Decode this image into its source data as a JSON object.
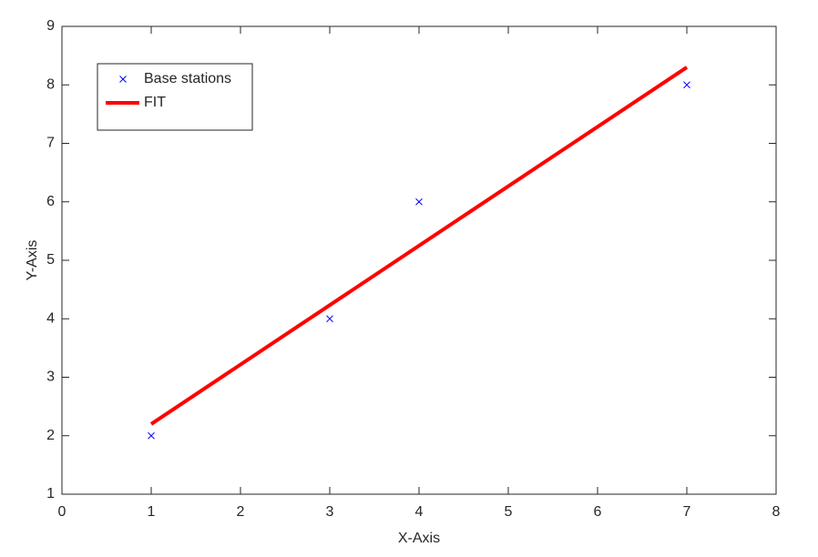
{
  "chart_data": {
    "type": "scatter",
    "xlabel": "X-Axis",
    "ylabel": "Y-Axis",
    "xlim": [
      0,
      8
    ],
    "xticks": [
      0,
      1,
      2,
      3,
      4,
      5,
      6,
      7,
      8
    ],
    "ylim": [
      1,
      9
    ],
    "yticks": [
      1,
      2,
      3,
      4,
      5,
      6,
      7,
      8,
      9
    ],
    "legend": "northwest",
    "box": true,
    "series": [
      {
        "name": "Base stations",
        "type": "scatter",
        "marker": "x",
        "color": "#0000ff",
        "x": [
          1,
          3,
          4,
          7
        ],
        "values": [
          2,
          4,
          6,
          8
        ]
      },
      {
        "name": "FIT",
        "type": "line",
        "color": "#ff0000",
        "x": [
          1,
          7
        ],
        "values": [
          2.2,
          8.3
        ]
      }
    ]
  }
}
